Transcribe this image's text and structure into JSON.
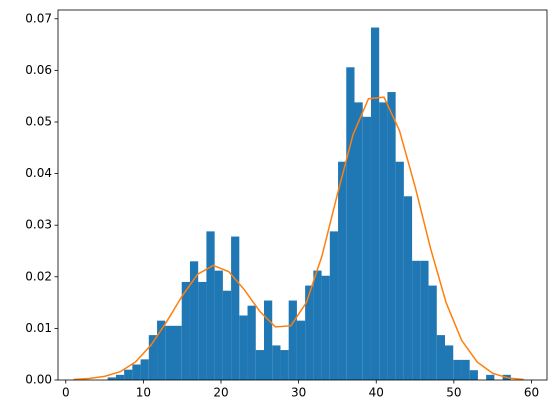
{
  "chart_data": {
    "type": "histogram",
    "bins": [
      5.4,
      6.46,
      7.52,
      8.58,
      9.64,
      10.7,
      11.76,
      12.82,
      13.88,
      14.94,
      16,
      17.06,
      18.12,
      19.18,
      20.24,
      21.3,
      22.36,
      23.42,
      24.48,
      25.54,
      26.6,
      27.66,
      28.72,
      29.78,
      30.84,
      31.9,
      32.96,
      34.02,
      35.08,
      36.14,
      37.2,
      38.26,
      39.32,
      40.38,
      41.44,
      42.5,
      43.56,
      44.62,
      45.68,
      46.74,
      47.8,
      48.86,
      49.92,
      50.98,
      52.04,
      53.1,
      54.16,
      55.22,
      56.28,
      57.34,
      58.4
    ],
    "values": [
      0.0005,
      0.001,
      0.002,
      0.003,
      0.004,
      0.0087,
      0.0115,
      0.0105,
      0.0105,
      0.019,
      0.023,
      0.019,
      0.0288,
      0.0212,
      0.0173,
      0.0278,
      0.0125,
      0.0144,
      0.0058,
      0.0154,
      0.0067,
      0.0058,
      0.0154,
      0.0115,
      0.0183,
      0.0212,
      0.0202,
      0.0288,
      0.0423,
      0.0606,
      0.0538,
      0.051,
      0.0683,
      0.0538,
      0.0558,
      0.0423,
      0.0356,
      0.0231,
      0.0231,
      0.0183,
      0.0087,
      0.0067,
      0.0039,
      0.0039,
      0.0019,
      0,
      0.001,
      0,
      0.001,
      0
    ],
    "color": "#1f77b4",
    "line": {
      "color": "#ff7f0e",
      "x": [
        1,
        3,
        5,
        7,
        9,
        11,
        13,
        15,
        17,
        19,
        21,
        23,
        25,
        27,
        29,
        31,
        33,
        35,
        37,
        39,
        41,
        43,
        45,
        47,
        49,
        51,
        53,
        55,
        57,
        59
      ],
      "values": [
        0.0001,
        0.0003,
        0.0007,
        0.0016,
        0.0035,
        0.0068,
        0.0113,
        0.0163,
        0.0205,
        0.0222,
        0.021,
        0.0175,
        0.0133,
        0.0103,
        0.0105,
        0.015,
        0.024,
        0.036,
        0.0475,
        0.0545,
        0.0548,
        0.0483,
        0.0375,
        0.0255,
        0.015,
        0.0077,
        0.0035,
        0.0013,
        0.0004,
        0.0001
      ]
    },
    "xlim": [
      -1,
      62
    ],
    "ylim": [
      0,
      0.0717
    ],
    "xticks": [
      0,
      10,
      20,
      30,
      40,
      50,
      60
    ],
    "yticks": [
      {
        "value": 0,
        "label": "0.00"
      },
      {
        "value": 0.01,
        "label": "0.01"
      },
      {
        "value": 0.02,
        "label": "0.02"
      },
      {
        "value": 0.03,
        "label": "0.03"
      },
      {
        "value": 0.04,
        "label": "0.04"
      },
      {
        "value": 0.05,
        "label": "0.05"
      },
      {
        "value": 0.06,
        "label": "0.06"
      },
      {
        "value": 0.07,
        "label": "0.07"
      }
    ]
  }
}
